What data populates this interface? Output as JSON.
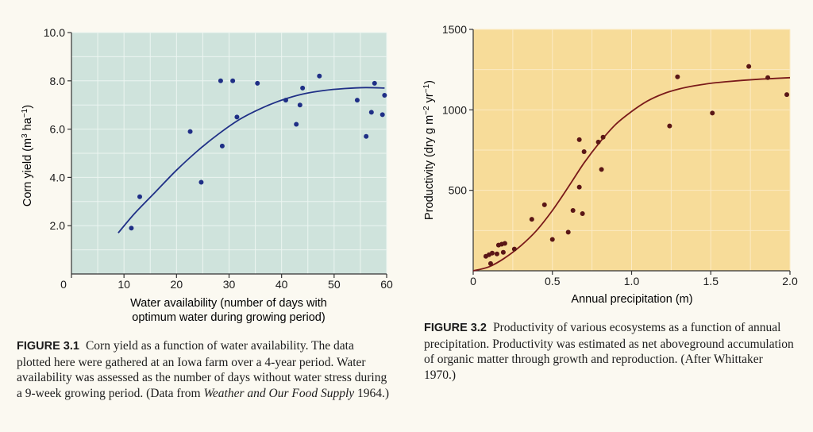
{
  "chart_data": [
    {
      "type": "scatter",
      "xlabel": "Water availability (number of days with optimum water during growing period)",
      "xlabel_lines": [
        "Water availability (number of days with",
        "optimum water during growing period)"
      ],
      "ylabel": "Corn yield (m³ ha⁻¹)",
      "ylabel_parts": {
        "base": "Corn yield (m",
        "sup1": "3",
        "mid": " ha",
        "sup2": "−1",
        "end": ")"
      },
      "xlim": [
        0,
        60
      ],
      "ylim": [
        0,
        10
      ],
      "x_ticks": [
        "0",
        "10",
        "20",
        "30",
        "40",
        "50",
        "60"
      ],
      "x_tick_values": [
        0,
        10,
        20,
        30,
        40,
        50,
        60
      ],
      "y_ticks": [
        "2.0",
        "4.0",
        "6.0",
        "8.0",
        "10.0"
      ],
      "y_tick_values": [
        2,
        4,
        6,
        8,
        10
      ],
      "grid": true,
      "points": [
        [
          11.4,
          1.9
        ],
        [
          13.0,
          3.2
        ],
        [
          22.6,
          5.9
        ],
        [
          24.7,
          3.8
        ],
        [
          28.4,
          8.0
        ],
        [
          28.7,
          5.3
        ],
        [
          30.7,
          8.0
        ],
        [
          31.5,
          6.5
        ],
        [
          35.4,
          7.9
        ],
        [
          40.8,
          7.2
        ],
        [
          42.8,
          6.2
        ],
        [
          43.5,
          7.0
        ],
        [
          44.0,
          7.7
        ],
        [
          47.2,
          8.2
        ],
        [
          54.4,
          7.2
        ],
        [
          56.1,
          5.7
        ],
        [
          57.1,
          6.7
        ],
        [
          57.7,
          7.9
        ],
        [
          59.2,
          6.6
        ],
        [
          59.6,
          7.4
        ]
      ],
      "fit_curve": [
        [
          8.9,
          1.7
        ],
        [
          12,
          2.5
        ],
        [
          16,
          3.4
        ],
        [
          20,
          4.3
        ],
        [
          24,
          5.1
        ],
        [
          28,
          5.8
        ],
        [
          32,
          6.4
        ],
        [
          36,
          6.85
        ],
        [
          40,
          7.2
        ],
        [
          44,
          7.45
        ],
        [
          48,
          7.6
        ],
        [
          52,
          7.68
        ],
        [
          56,
          7.72
        ],
        [
          59.6,
          7.7
        ]
      ],
      "colors": {
        "background": "#cfe3dc",
        "grid": "#ecf5f1",
        "points": "#1f2f86",
        "curve": "#1f2f86"
      },
      "caption_label": "FIGURE 3.1",
      "caption_parts": {
        "before": "Corn yield as a function of water availability. The data plotted here were gathered at an Iowa farm over a 4-year period. Water availability was assessed as the number of days without water stress during a 9-week growing period. (Data from ",
        "italic": "Weather and Our Food Supply",
        "after": " 1964.)"
      }
    },
    {
      "type": "scatter",
      "xlabel": "Annual precipitation (m)",
      "ylabel": "Productivity (dry g m⁻² yr⁻¹)",
      "ylabel_parts": {
        "base": "Productivity (dry g m",
        "sup1": "−2",
        "mid": " yr",
        "sup2": "−1",
        "end": ")"
      },
      "xlim": [
        0,
        2.0
      ],
      "ylim": [
        0,
        1500
      ],
      "x_ticks": [
        "0",
        "0.5",
        "1.0",
        "1.5",
        "2.0"
      ],
      "x_tick_values": [
        0,
        0.5,
        1.0,
        1.5,
        2.0
      ],
      "y_ticks": [
        "500",
        "1000",
        "1500"
      ],
      "y_tick_values": [
        500,
        1000,
        1500
      ],
      "grid": true,
      "points": [
        [
          0.08,
          90
        ],
        [
          0.1,
          100
        ],
        [
          0.11,
          45
        ],
        [
          0.12,
          110
        ],
        [
          0.15,
          105
        ],
        [
          0.16,
          160
        ],
        [
          0.18,
          165
        ],
        [
          0.19,
          115
        ],
        [
          0.2,
          170
        ],
        [
          0.26,
          135
        ],
        [
          0.37,
          320
        ],
        [
          0.45,
          410
        ],
        [
          0.5,
          195
        ],
        [
          0.6,
          240
        ],
        [
          0.63,
          375
        ],
        [
          0.67,
          815
        ],
        [
          0.67,
          520
        ],
        [
          0.69,
          355
        ],
        [
          0.7,
          740
        ],
        [
          0.79,
          800
        ],
        [
          0.81,
          630
        ],
        [
          0.82,
          830
        ],
        [
          1.24,
          900
        ],
        [
          1.29,
          1205
        ],
        [
          1.51,
          980
        ],
        [
          1.74,
          1270
        ],
        [
          1.86,
          1200
        ],
        [
          1.98,
          1095
        ]
      ],
      "fit_curve": [
        [
          0.0,
          0
        ],
        [
          0.1,
          25
        ],
        [
          0.2,
          80
        ],
        [
          0.3,
          155
        ],
        [
          0.4,
          250
        ],
        [
          0.5,
          375
        ],
        [
          0.6,
          520
        ],
        [
          0.7,
          670
        ],
        [
          0.8,
          800
        ],
        [
          0.9,
          910
        ],
        [
          1.0,
          990
        ],
        [
          1.1,
          1055
        ],
        [
          1.2,
          1100
        ],
        [
          1.3,
          1130
        ],
        [
          1.4,
          1150
        ],
        [
          1.5,
          1165
        ],
        [
          1.6,
          1175
        ],
        [
          1.7,
          1183
        ],
        [
          1.8,
          1190
        ],
        [
          1.9,
          1195
        ],
        [
          2.0,
          1200
        ]
      ],
      "colors": {
        "background": "#f7dc99",
        "grid": "#fbeac4",
        "points": "#5a1616",
        "curve": "#7a1a1a"
      },
      "caption_label": "FIGURE 3.2",
      "caption_parts": {
        "before": "Productivity of various ecosystems as a function of annual precipitation. Productivity was estimated as net aboveground accumulation of organic matter through growth and reproduction. (After Whittaker 1970.)",
        "italic": "",
        "after": ""
      }
    }
  ]
}
